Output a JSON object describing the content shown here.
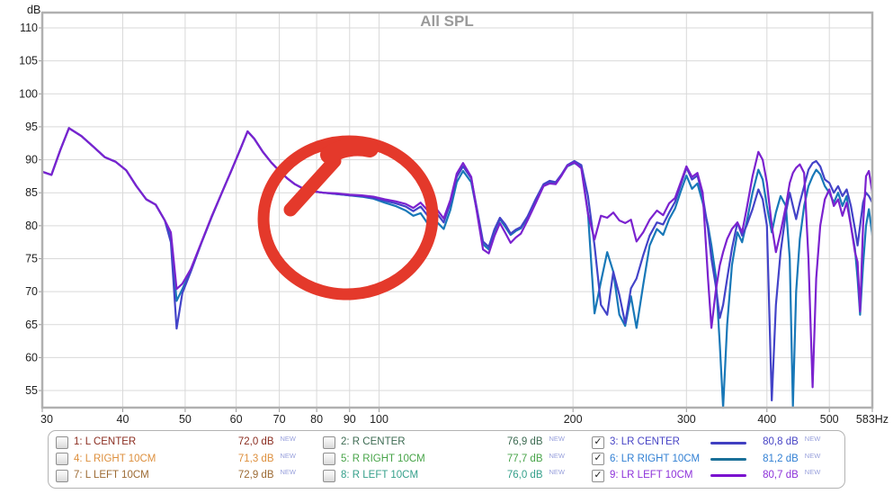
{
  "title": "All SPL",
  "title_color": "#9a9a9a",
  "axes": {
    "y_unit": "dB",
    "x_end_label": "583Hz",
    "y_ticks": [
      110,
      105,
      100,
      95,
      90,
      85,
      80,
      75,
      70,
      65,
      60,
      55
    ],
    "x_ticks": [
      30,
      40,
      50,
      60,
      70,
      80,
      90,
      100,
      200,
      300,
      400,
      500
    ],
    "grid_color": "#d9d9d9",
    "border_color": "#b0b0b0",
    "label_color": "#222222"
  },
  "annotation": {
    "type": "hand-drawn-circle",
    "color": "#e4392b"
  },
  "legend": {
    "rows": [
      {
        "label": "1: L CENTER",
        "value": "72,0 dB",
        "tag": "NEW",
        "color": "#8b2e21",
        "checked": false,
        "swatch": null
      },
      {
        "label": "2: R CENTER",
        "value": "76,9 dB",
        "tag": "NEW",
        "color": "#3d6b52",
        "checked": false,
        "swatch": null
      },
      {
        "label": "3: LR CENTER",
        "value": "80,8 dB",
        "tag": "NEW",
        "color": "#4845c6",
        "checked": true,
        "swatch": "#403fc1"
      },
      {
        "label": "4: L RIGHT 10CM",
        "value": "71,3 dB",
        "tag": "NEW",
        "color": "#dd8f3d",
        "checked": false,
        "swatch": null
      },
      {
        "label": "5: R RIGHT 10CM",
        "value": "77,7 dB",
        "tag": "NEW",
        "color": "#48a449",
        "checked": false,
        "swatch": null
      },
      {
        "label": "6: LR RIGHT 10CM",
        "value": "81,2 dB",
        "tag": "NEW",
        "color": "#3381d4",
        "checked": true,
        "swatch": "#1a7099"
      },
      {
        "label": "7: L LEFT 10CM",
        "value": "72,9 dB",
        "tag": "NEW",
        "color": "#9c6a33",
        "checked": false,
        "swatch": null
      },
      {
        "label": "8: R LEFT 10CM",
        "value": "76,0 dB",
        "tag": "NEW",
        "color": "#35a08b",
        "checked": false,
        "swatch": null
      },
      {
        "label": "9: LR LEFT 10CM",
        "value": "80,7 dB",
        "tag": "NEW",
        "color": "#8d32d9",
        "checked": true,
        "swatch": "#7a10cf"
      }
    ]
  },
  "chart_data": {
    "type": "line",
    "x_scale": "log",
    "xlabel_suffix": "Hz",
    "ylabel": "dB",
    "x_range": [
      30,
      583
    ],
    "y_range": [
      52.4,
      112.3
    ],
    "grid": true,
    "x": [
      30,
      31,
      32,
      33,
      34.5,
      36,
      37.5,
      39,
      40.5,
      42,
      43.5,
      45,
      46.5,
      47.5,
      48.5,
      49.5,
      51,
      53,
      55,
      57,
      59,
      61,
      62.5,
      64,
      66,
      68,
      70,
      72,
      74,
      76,
      79,
      82,
      86,
      90,
      94,
      98,
      102,
      106,
      110,
      113,
      116,
      119,
      122,
      126,
      129,
      132,
      135,
      139,
      142,
      145,
      148,
      151,
      154,
      157,
      160,
      163,
      166,
      170,
      175,
      180,
      184,
      188,
      192,
      196,
      201,
      206,
      211,
      216,
      221,
      226,
      231,
      236,
      241,
      246,
      251,
      257,
      263,
      270,
      276,
      282,
      288,
      294,
      300,
      306,
      312,
      318,
      324,
      328,
      333,
      338,
      342,
      347,
      353,
      360,
      366,
      372,
      380,
      388,
      394,
      400,
      407,
      413,
      420,
      428,
      434,
      439,
      444,
      450,
      457,
      464,
      471,
      477,
      484,
      492,
      500,
      508,
      516,
      524,
      532,
      540,
      548,
      553,
      558,
      564,
      570,
      576,
      583
    ],
    "series": [
      {
        "name": "LR CENTER",
        "color": "#4343c8",
        "values": [
          88.2,
          87.7,
          91.5,
          94.8,
          93.6,
          92,
          90.4,
          89.7,
          88.4,
          86,
          84,
          83.2,
          80.8,
          77.5,
          64.4,
          69.8,
          73,
          77.4,
          81.4,
          85,
          88.4,
          91.8,
          94.3,
          93.2,
          91.2,
          89.6,
          88.3,
          87.2,
          86.3,
          85.7,
          85.2,
          85,
          84.8,
          84.6,
          84.5,
          84.2,
          83.8,
          83.4,
          82.9,
          82.2,
          82.9,
          81.5,
          82.3,
          80.5,
          83.4,
          87.4,
          89,
          87.2,
          82.4,
          77.6,
          76.8,
          79.4,
          81.2,
          80.2,
          78.8,
          79.4,
          79.8,
          81.4,
          84,
          86.3,
          86.8,
          86.6,
          87.8,
          89.2,
          89.8,
          89.2,
          84.5,
          77,
          68,
          66.5,
          73,
          69.5,
          65.2,
          70.5,
          72,
          75.5,
          78.5,
          80.5,
          80.2,
          82,
          83.6,
          86.2,
          88.8,
          87,
          87.6,
          84.5,
          79.5,
          75,
          71,
          66,
          68,
          72,
          76.5,
          80.5,
          78.5,
          80,
          82.5,
          85.5,
          84,
          80,
          53.5,
          68,
          76,
          82,
          85,
          83,
          81,
          83.5,
          86,
          88.5,
          89.5,
          89.8,
          89,
          87,
          86.5,
          85,
          86,
          84.5,
          85.5,
          83,
          79.5,
          77,
          80,
          83.5,
          85,
          84.5,
          83.5
        ]
      },
      {
        "name": "LR RIGHT 10CM",
        "color": "#1878b8",
        "values": [
          88.2,
          87.7,
          91.5,
          94.8,
          93.6,
          92,
          90.4,
          89.7,
          88.4,
          86,
          84,
          83.2,
          80.8,
          78.2,
          68.6,
          70.4,
          73.2,
          77.4,
          81.4,
          85,
          88.4,
          91.8,
          94.3,
          93.2,
          91.2,
          89.6,
          88.3,
          87.2,
          86.3,
          85.7,
          85.2,
          85,
          84.8,
          84.6,
          84.4,
          84.1,
          83.5,
          83,
          82.3,
          81.5,
          81.9,
          80.3,
          80.9,
          79.5,
          82.4,
          86.6,
          88.3,
          86.6,
          82,
          77.2,
          76.4,
          79,
          81,
          79.8,
          78.6,
          79.2,
          79.6,
          81.2,
          83.8,
          86.2,
          86.6,
          86.4,
          87.7,
          89,
          89.5,
          88.9,
          82,
          66.7,
          71.5,
          76,
          73,
          66.5,
          64.8,
          69.3,
          64.5,
          71,
          77,
          79.5,
          78.6,
          81,
          82.6,
          85.2,
          87.6,
          85.6,
          86.4,
          83.5,
          80,
          77,
          72.5,
          62,
          52.4,
          65,
          74,
          79,
          77.5,
          80.5,
          85,
          88.5,
          87,
          83,
          79,
          82,
          84.5,
          83,
          75,
          52.6,
          70,
          78,
          83,
          86,
          87.5,
          88.5,
          87.8,
          86,
          85,
          83.5,
          85,
          83,
          84.5,
          80,
          76.5,
          72,
          66.5,
          74,
          80,
          82.5,
          78.5
        ]
      },
      {
        "name": "LR LEFT 10CM",
        "color": "#7b22cf",
        "values": [
          88.2,
          87.7,
          91.5,
          94.8,
          93.6,
          92,
          90.4,
          89.7,
          88.4,
          86,
          84,
          83.2,
          80.8,
          79,
          70.4,
          71.2,
          73.4,
          77.5,
          81.5,
          85,
          88.4,
          91.8,
          94.3,
          93.2,
          91.2,
          89.6,
          88.3,
          87.2,
          86.3,
          85.7,
          85.2,
          85,
          84.9,
          84.7,
          84.6,
          84.4,
          84,
          83.7,
          83.3,
          82.7,
          83.5,
          82.3,
          82.9,
          81.1,
          83.9,
          87.9,
          89.5,
          87.4,
          81.8,
          76.4,
          75.8,
          78.4,
          80.4,
          78.9,
          77.4,
          78.2,
          78.8,
          80.8,
          83.4,
          86,
          86.4,
          86.3,
          87.6,
          89.1,
          89.6,
          88.7,
          81.8,
          77.9,
          81.5,
          81.2,
          82,
          80.8,
          80.4,
          80.9,
          77.6,
          79,
          80.9,
          82.3,
          81.6,
          83.4,
          84.2,
          86.6,
          89,
          87.4,
          88,
          85,
          72,
          64.5,
          70,
          74,
          76,
          78,
          79.5,
          80.5,
          79,
          82.5,
          87.5,
          91.2,
          90,
          86.5,
          80,
          76,
          79,
          83,
          86.5,
          88,
          88.8,
          89.3,
          88,
          75,
          55.5,
          72,
          80,
          84,
          85.5,
          83,
          84,
          81.5,
          83.5,
          80,
          76,
          74.5,
          67,
          80,
          87.5,
          88.3,
          85
        ]
      }
    ]
  }
}
